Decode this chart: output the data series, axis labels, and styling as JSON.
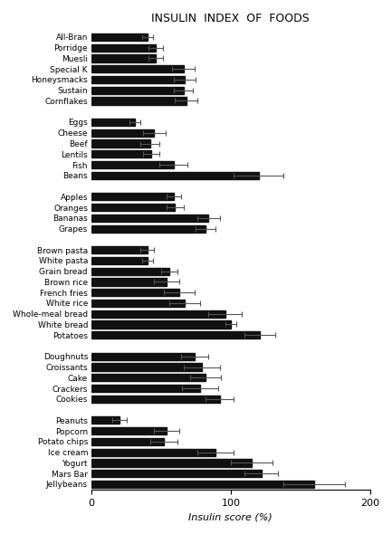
{
  "title": "INSULIN  INDEX  OF  FOODS",
  "xlabel": "Insulin score (%)",
  "xlim": [
    0,
    200
  ],
  "xticks": [
    0,
    100,
    200
  ],
  "background_color": "#ffffff",
  "bar_color": "#111111",
  "groups": [
    {
      "foods": [
        "All-Bran",
        "Porridge",
        "Muesli",
        "Special K",
        "Honeysmacks",
        "Sustain",
        "Cornflakes"
      ],
      "values": [
        40,
        46,
        46,
        66,
        67,
        66,
        68
      ],
      "errors": [
        4,
        5,
        5,
        8,
        8,
        7,
        8
      ]
    },
    {
      "foods": [
        "Eggs",
        "Cheese",
        "Beef",
        "Lentils",
        "Fish",
        "Beans"
      ],
      "values": [
        31,
        45,
        42,
        43,
        59,
        120
      ],
      "errors": [
        4,
        8,
        7,
        6,
        10,
        18
      ]
    },
    {
      "foods": [
        "Apples",
        "Oranges",
        "Bananas",
        "Grapes"
      ],
      "values": [
        59,
        60,
        84,
        82
      ],
      "errors": [
        5,
        6,
        8,
        7
      ]
    },
    {
      "foods": [
        "Brown pasta",
        "White pasta",
        "Grain bread",
        "Brown rice",
        "French fries",
        "White rice",
        "Whole-meal bread",
        "White bread",
        "Potatoes"
      ],
      "values": [
        40,
        40,
        56,
        54,
        63,
        67,
        96,
        100,
        121
      ],
      "errors": [
        5,
        4,
        6,
        9,
        11,
        11,
        12,
        4,
        11
      ]
    },
    {
      "foods": [
        "Doughnuts",
        "Croissants",
        "Cake",
        "Crackers",
        "Cookies"
      ],
      "values": [
        74,
        79,
        82,
        78,
        92
      ],
      "errors": [
        10,
        13,
        11,
        13,
        10
      ]
    },
    {
      "foods": [
        "Peanuts",
        "Popcorn",
        "Potato chips",
        "Ice cream",
        "Yogurt",
        "Mars Bar",
        "Jellybeans"
      ],
      "values": [
        20,
        54,
        52,
        89,
        115,
        122,
        160
      ],
      "errors": [
        5,
        9,
        10,
        13,
        15,
        12,
        22
      ]
    }
  ]
}
